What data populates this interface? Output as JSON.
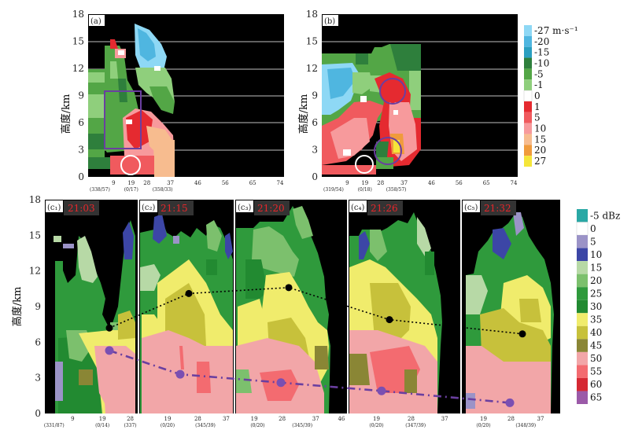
{
  "chart_data": [
    {
      "id": "a",
      "type": "heatmap",
      "panel_label": "(a)",
      "quantity": "radial velocity",
      "ylabel": "高度/km",
      "ylim": [
        0,
        18
      ],
      "yticks": [
        "0",
        "3",
        "6",
        "9",
        "12",
        "15",
        "18"
      ],
      "xticks": [
        "9",
        "19",
        "28",
        "37",
        "46",
        "56",
        "65",
        "74"
      ],
      "xsub": [
        "(338/57)",
        "(0/17)",
        "(358/33)"
      ],
      "annotations": [
        "purple-rectangle",
        "white-circle"
      ]
    },
    {
      "id": "b",
      "type": "heatmap",
      "panel_label": "(b)",
      "quantity": "radial velocity",
      "ylim": [
        0,
        18
      ],
      "yticks": [
        "0",
        "3",
        "6",
        "9",
        "12",
        "15",
        "18"
      ],
      "xticks": [
        "9",
        "19",
        "28",
        "37",
        "46",
        "56",
        "65",
        "74"
      ],
      "xsub": [
        "(319/54)",
        "(0/18)",
        "(358/57)"
      ],
      "annotations": [
        "purple-circle-upper",
        "purple-circle-lower",
        "white-circle"
      ]
    },
    {
      "id": "c",
      "type": "heatmap",
      "quantity": "reflectivity",
      "ylabel": "高度/km",
      "ylim": [
        0,
        18
      ],
      "yticks": [
        "0",
        "3",
        "6",
        "9",
        "12",
        "15",
        "18"
      ],
      "panels": [
        {
          "label": "(c₁)",
          "time": "21:03",
          "xticks": [
            "9",
            "19",
            "28"
          ],
          "xsub": [
            "(331/87)",
            "(0/14)",
            "(337)"
          ],
          "echo_top_km": 7.2,
          "core_km": 5.3
        },
        {
          "label": "(c₂)",
          "time": "21:15",
          "xticks": [
            "19",
            "28",
            "37"
          ],
          "xsub": [
            "(0/20)",
            "(345/39)"
          ],
          "echo_top_km": 10.1,
          "core_km": 3.3
        },
        {
          "label": "(c₃)",
          "time": "21:20",
          "xticks": [
            "19",
            "28",
            "37",
            "46"
          ],
          "xsub": [
            "(0/20)",
            "(345/39)"
          ],
          "echo_top_km": 10.6,
          "core_km": 2.6
        },
        {
          "label": "(c₄)",
          "time": "21:26",
          "xticks": [
            "19",
            "28",
            "37"
          ],
          "xsub": [
            "(0/20)",
            "(347/39)"
          ],
          "echo_top_km": 7.9,
          "core_km": 1.9
        },
        {
          "label": "(c₅)",
          "time": "21:32",
          "xticks": [
            "19",
            "28",
            "37"
          ],
          "xsub": [
            "(0/20)",
            "(348/39)"
          ],
          "echo_top_km": 6.7,
          "core_km": 0.9
        }
      ]
    }
  ],
  "velocity_legend": {
    "labels": [
      "-27 m·s⁻¹",
      "-20",
      "-15",
      "-10",
      "-5",
      "-1",
      "0",
      "1",
      "5",
      "10",
      "15",
      "20",
      "27"
    ],
    "colors": [
      "#8ed8f5",
      "#4fb6e0",
      "#2a9fc0",
      "#2e7f3c",
      "#53a646",
      "#8fcf7c",
      "#ffffff",
      "#e52a30",
      "#f05a5e",
      "#f79a9c",
      "#f7bc8f",
      "#f09b3c",
      "#f5e63a"
    ]
  },
  "dbz_legend": {
    "labels": [
      "-5 dBz",
      "0",
      "5",
      "10",
      "15",
      "20",
      "25",
      "30",
      "35",
      "40",
      "45",
      "50",
      "55",
      "60",
      "65"
    ],
    "colors": [
      "#29a8a5",
      "#ffffff",
      "#9b93c7",
      "#3c46a6",
      "#b7d9a6",
      "#7cc06d",
      "#2f9a3c",
      "#228a31",
      "#f0ec6c",
      "#c7c13b",
      "#8a8635",
      "#f2a6a8",
      "#f36b70",
      "#d52833",
      "#9b5aa8"
    ]
  }
}
